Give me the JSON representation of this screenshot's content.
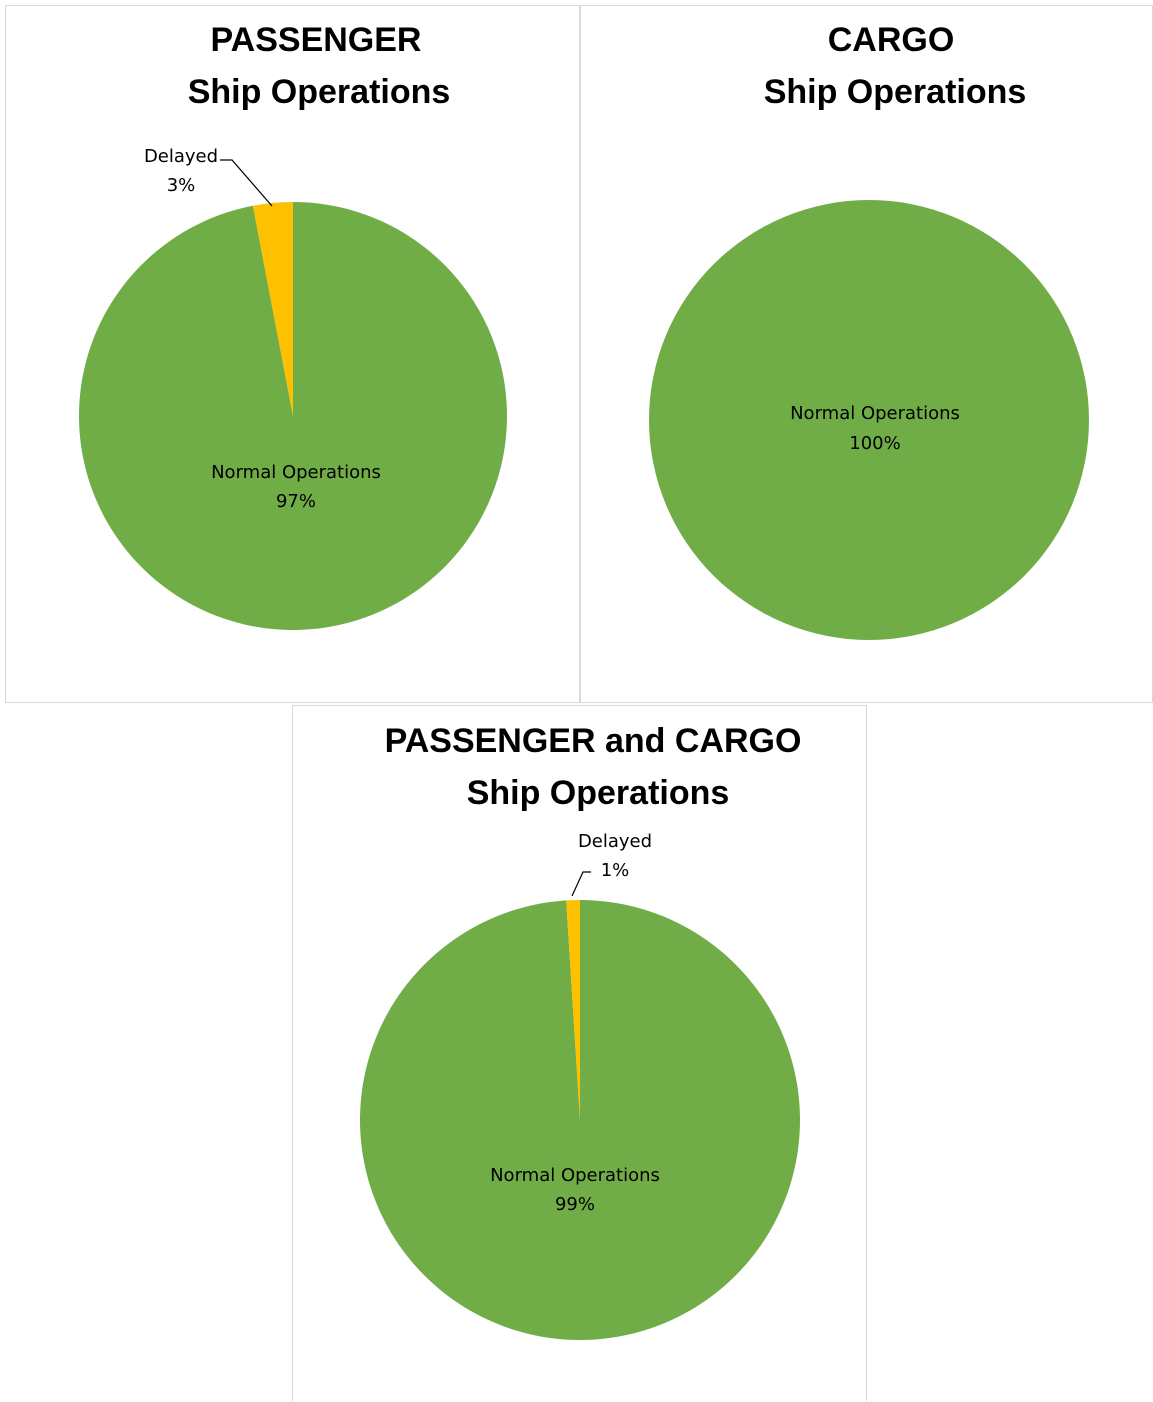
{
  "colors": {
    "normal": "#70ad47",
    "delayed": "#ffc000",
    "panel_border": "#d9d9d9"
  },
  "chart_data": [
    {
      "type": "pie",
      "title": [
        "PASSENGER",
        "Ship Operations"
      ],
      "slices": [
        {
          "label": "Delayed",
          "value": 3,
          "value_label": "3%"
        },
        {
          "label": "Normal Operations",
          "value": 97,
          "value_label": "97%"
        }
      ]
    },
    {
      "type": "pie",
      "title": [
        "CARGO",
        "Ship Operations"
      ],
      "slices": [
        {
          "label": "Normal Operations",
          "value": 100,
          "value_label": "100%"
        }
      ]
    },
    {
      "type": "pie",
      "title": [
        "PASSENGER and CARGO",
        "Ship Operations"
      ],
      "slices": [
        {
          "label": "Delayed",
          "value": 1,
          "value_label": "1%"
        },
        {
          "label": "Normal Operations",
          "value": 99,
          "value_label": "99%"
        }
      ]
    }
  ]
}
